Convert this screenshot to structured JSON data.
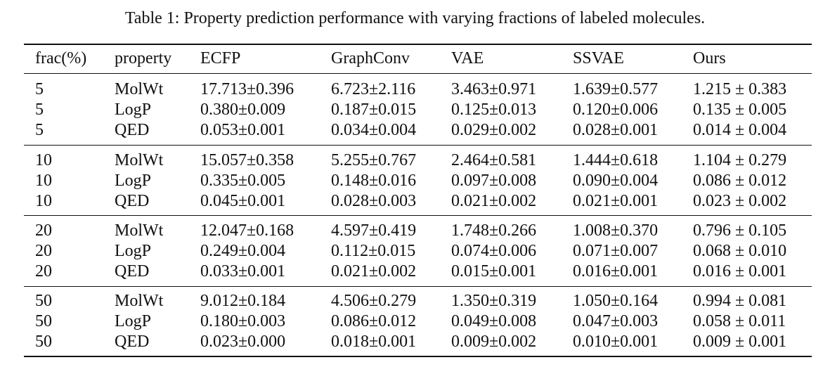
{
  "caption": "Table 1: Property prediction performance with varying fractions of labeled molecules.",
  "table": {
    "headers": [
      "frac(%)",
      "property",
      "ECFP",
      "GraphConv",
      "VAE",
      "SSVAE",
      "Ours"
    ],
    "groups": [
      {
        "rows": [
          [
            "5",
            "MolWt",
            "17.713±0.396",
            "6.723±2.116",
            "3.463±0.971",
            "1.639±0.577",
            "1.215 ± 0.383"
          ],
          [
            "5",
            "LogP",
            "0.380±0.009",
            "0.187±0.015",
            "0.125±0.013",
            "0.120±0.006",
            "0.135 ± 0.005"
          ],
          [
            "5",
            "QED",
            "0.053±0.001",
            "0.034±0.004",
            "0.029±0.002",
            "0.028±0.001",
            "0.014 ± 0.004"
          ]
        ]
      },
      {
        "rows": [
          [
            "10",
            "MolWt",
            "15.057±0.358",
            "5.255±0.767",
            "2.464±0.581",
            "1.444±0.618",
            "1.104 ± 0.279"
          ],
          [
            "10",
            "LogP",
            "0.335±0.005",
            "0.148±0.016",
            "0.097±0.008",
            "0.090±0.004",
            "0.086 ± 0.012"
          ],
          [
            "10",
            "QED",
            "0.045±0.001",
            "0.028±0.003",
            "0.021±0.002",
            "0.021±0.001",
            "0.023 ± 0.002"
          ]
        ]
      },
      {
        "rows": [
          [
            "20",
            "MolWt",
            "12.047±0.168",
            "4.597±0.419",
            "1.748±0.266",
            "1.008±0.370",
            "0.796 ± 0.105"
          ],
          [
            "20",
            "LogP",
            "0.249±0.004",
            "0.112±0.015",
            "0.074±0.006",
            "0.071±0.007",
            "0.068 ± 0.010"
          ],
          [
            "20",
            "QED",
            "0.033±0.001",
            "0.021±0.002",
            "0.015±0.001",
            "0.016±0.001",
            "0.016 ± 0.001"
          ]
        ]
      },
      {
        "rows": [
          [
            "50",
            "MolWt",
            "9.012±0.184",
            "4.506±0.279",
            "1.350±0.319",
            "1.050±0.164",
            "0.994 ± 0.081"
          ],
          [
            "50",
            "LogP",
            "0.180±0.003",
            "0.086±0.012",
            "0.049±0.008",
            "0.047±0.003",
            "0.058 ± 0.011"
          ],
          [
            "50",
            "QED",
            "0.023±0.000",
            "0.018±0.001",
            "0.009±0.002",
            "0.010±0.001",
            "0.009 ± 0.001"
          ]
        ]
      }
    ]
  }
}
